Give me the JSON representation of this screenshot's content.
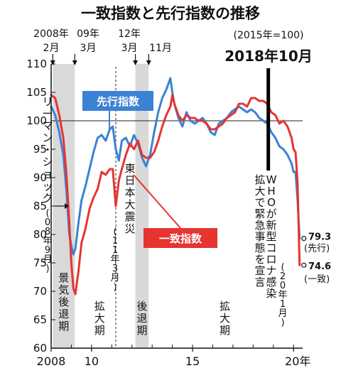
{
  "chart_data": {
    "type": "line",
    "title": "一致指数と先行指数の推移",
    "base_note": "(2015年=100)",
    "ylim": [
      60,
      110
    ],
    "y_ticks": [
      60,
      65,
      70,
      75,
      80,
      85,
      90,
      95,
      100,
      105,
      110
    ],
    "x_range": [
      2008.0,
      2020.45
    ],
    "x_ticks": [
      {
        "value": 2008,
        "label": "2008"
      },
      {
        "value": 2010,
        "label": "10"
      },
      {
        "value": 2015,
        "label": "15"
      },
      {
        "value": 2020,
        "label": "20年"
      }
    ],
    "reference_line": {
      "y": 100
    },
    "top_markers": [
      {
        "x": 2008.08,
        "year": "2008年",
        "month": "2月"
      },
      {
        "x": 2009.17,
        "year": "09年",
        "month": "3月"
      },
      {
        "x": 2012.17,
        "year": "12年",
        "month": "3月"
      },
      {
        "x": 2012.83,
        "year": "",
        "month": "11月"
      }
    ],
    "recessions": [
      {
        "start": 2008.08,
        "end": 2009.17,
        "label": "景気後退期"
      },
      {
        "start": 2012.17,
        "end": 2012.83,
        "label": "後退期"
      }
    ],
    "expansion_labels": [
      {
        "x": 2010.4,
        "label": "拡大期"
      },
      {
        "x": 2016.6,
        "label": "拡大期"
      }
    ],
    "events": [
      {
        "x": 2011.2,
        "label": "東日本大震災",
        "sub": "(11年3月)",
        "style": "dashed"
      },
      {
        "x": 2018.75,
        "label": "2018年10月",
        "style": "bold"
      }
    ],
    "side_annotations": [
      {
        "label": "リーマン・ショック",
        "sub": "(08年9月)"
      },
      {
        "label": "WHOが新型コロナ感染拡大で緊急事態を宣言",
        "sub": "(20年1月)"
      }
    ],
    "series": [
      {
        "name": "先行指数",
        "color": "#3b82d4",
        "end_value": 79.3,
        "end_note": "(先行)",
        "x": [
          2008.0,
          2008.2,
          2008.4,
          2008.6,
          2008.75,
          2008.9,
          2009.0,
          2009.1,
          2009.2,
          2009.35,
          2009.5,
          2009.7,
          2009.9,
          2010.1,
          2010.3,
          2010.5,
          2010.7,
          2010.9,
          2011.05,
          2011.2,
          2011.35,
          2011.5,
          2011.7,
          2011.9,
          2012.1,
          2012.3,
          2012.5,
          2012.7,
          2012.9,
          2013.1,
          2013.3,
          2013.5,
          2013.7,
          2013.9,
          2014.0,
          2014.1,
          2014.3,
          2014.5,
          2014.7,
          2014.9,
          2015.1,
          2015.3,
          2015.5,
          2015.7,
          2015.9,
          2016.1,
          2016.3,
          2016.5,
          2016.7,
          2016.9,
          2017.1,
          2017.3,
          2017.5,
          2017.7,
          2017.9,
          2018.1,
          2018.3,
          2018.5,
          2018.7,
          2018.9,
          2019.1,
          2019.3,
          2019.5,
          2019.7,
          2019.9,
          2020.0,
          2020.1,
          2020.2,
          2020.3
        ],
        "values": [
          102.5,
          101,
          98,
          94,
          88,
          80,
          78,
          76.5,
          77.5,
          82,
          86,
          88.5,
          91.5,
          94.5,
          97,
          97.5,
          96.5,
          98.5,
          99,
          95,
          93,
          96.5,
          97,
          95.5,
          97.5,
          96,
          93.5,
          92,
          94,
          98,
          101.5,
          104,
          105.5,
          107.5,
          105,
          103,
          100.5,
          99,
          101.5,
          100,
          99.5,
          100,
          100.5,
          99.5,
          98,
          97.5,
          99.5,
          100,
          100.5,
          101.5,
          102,
          102.5,
          102,
          101.5,
          102,
          101.5,
          100.5,
          100,
          99.5,
          98,
          97,
          95.5,
          95,
          94,
          92.5,
          91,
          91,
          86,
          79.3
        ]
      },
      {
        "name": "一致指数",
        "color": "#e63431",
        "end_value": 74.6,
        "end_note": "(一致)",
        "x": [
          2008.0,
          2008.2,
          2008.4,
          2008.6,
          2008.75,
          2008.9,
          2009.0,
          2009.1,
          2009.2,
          2009.35,
          2009.5,
          2009.7,
          2009.9,
          2010.1,
          2010.3,
          2010.5,
          2010.7,
          2010.9,
          2011.05,
          2011.2,
          2011.35,
          2011.5,
          2011.7,
          2011.9,
          2012.1,
          2012.3,
          2012.5,
          2012.7,
          2012.9,
          2013.1,
          2013.3,
          2013.5,
          2013.7,
          2013.9,
          2014.0,
          2014.1,
          2014.3,
          2014.5,
          2014.7,
          2014.9,
          2015.1,
          2015.3,
          2015.5,
          2015.7,
          2015.9,
          2016.1,
          2016.3,
          2016.5,
          2016.7,
          2016.9,
          2017.1,
          2017.3,
          2017.5,
          2017.7,
          2017.9,
          2018.1,
          2018.3,
          2018.5,
          2018.7,
          2018.9,
          2019.1,
          2019.3,
          2019.5,
          2019.7,
          2019.9,
          2020.0,
          2020.1,
          2020.2,
          2020.3
        ],
        "values": [
          104.5,
          104,
          101,
          97,
          91,
          82,
          75,
          70.5,
          69.5,
          73.5,
          78.5,
          81,
          84.5,
          86.5,
          88,
          91,
          90.5,
          91.5,
          91.5,
          85,
          89.5,
          91.5,
          94,
          96,
          95,
          96.5,
          94,
          93.5,
          93.5,
          94.5,
          96.5,
          99,
          101,
          102.5,
          104.5,
          103,
          101,
          100,
          101,
          100.5,
          100.5,
          100,
          100,
          99.5,
          98.5,
          98.5,
          99,
          99.5,
          100.5,
          101,
          101.5,
          103,
          103,
          102.5,
          104,
          104,
          103.5,
          103.5,
          103,
          101.5,
          101,
          99.5,
          100,
          99,
          97,
          95,
          94.5,
          89,
          74.6
        ]
      }
    ]
  }
}
